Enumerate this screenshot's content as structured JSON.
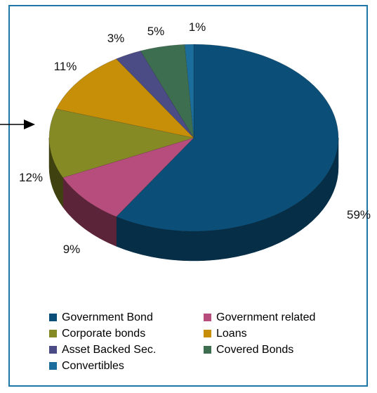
{
  "chart_data": {
    "type": "pie",
    "title": "",
    "three_d": true,
    "legend_position": "bottom",
    "slices": [
      {
        "name": "Government Bond",
        "value": 59,
        "label": "59%",
        "color": "#0b4f78",
        "side_color": "#072e47"
      },
      {
        "name": "Government related",
        "value": 9,
        "label": "9%",
        "color": "#b74d7c",
        "side_color": "#5c2438"
      },
      {
        "name": "Corporate bonds",
        "value": 12,
        "label": "12%",
        "color": "#868a25",
        "side_color": "#3f4110"
      },
      {
        "name": "Loans",
        "value": 11,
        "label": "11%",
        "color": "#c78f07",
        "side_color": "#6a4a03"
      },
      {
        "name": "Asset Backed Sec.",
        "value": 3,
        "label": "3%",
        "color": "#4b4b86",
        "side_color": "#25254a"
      },
      {
        "name": "Covered Bonds",
        "value": 5,
        "label": "5%",
        "color": "#3d6e50",
        "side_color": "#1f3a29"
      },
      {
        "name": "Convertibles",
        "value": 1,
        "label": "1%",
        "color": "#1b6e9c",
        "side_color": "#0e3a52"
      }
    ]
  },
  "colors": {
    "frame_border": "#1f77a8",
    "arrow": "#000000"
  }
}
